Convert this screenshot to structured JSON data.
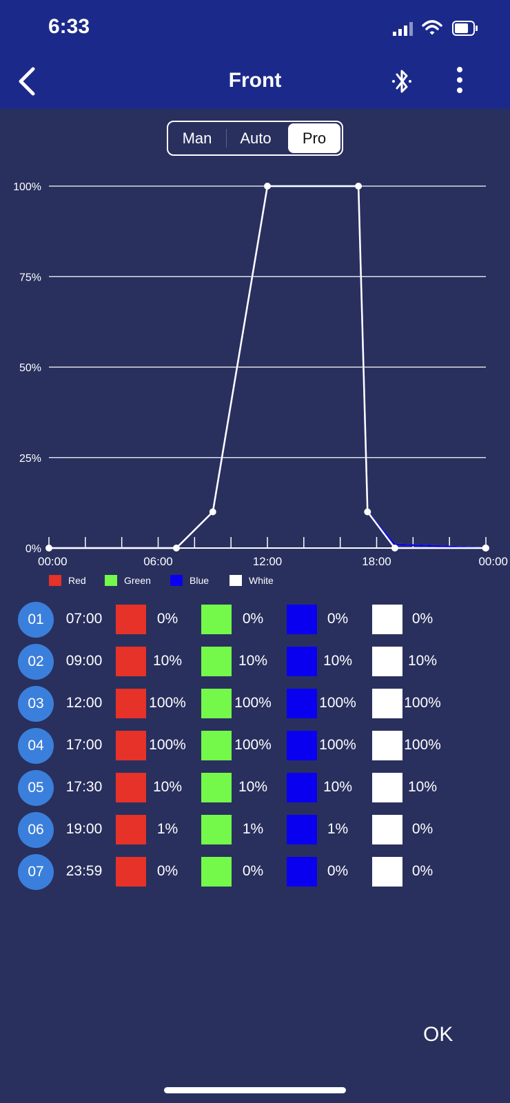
{
  "status": {
    "time": "6:33"
  },
  "header": {
    "title": "Front"
  },
  "segments": {
    "man": "Man",
    "auto": "Auto",
    "pro": "Pro",
    "selected": "Pro"
  },
  "chart_data": {
    "type": "line",
    "yticks": [
      "100%",
      "75%",
      "50%",
      "25%",
      "0%"
    ],
    "xticks": [
      "00:00",
      "06:00",
      "12:00",
      "18:00",
      "00:00"
    ],
    "ylim": [
      0,
      100
    ],
    "xlim_hours": [
      0,
      24
    ],
    "x": [
      "07:00",
      "09:00",
      "12:00",
      "17:00",
      "17:30",
      "19:00",
      "23:59"
    ],
    "series": [
      {
        "name": "Red",
        "color": "#e63228",
        "values": [
          0,
          10,
          100,
          100,
          10,
          1,
          0
        ]
      },
      {
        "name": "Green",
        "color": "#74f94a",
        "values": [
          0,
          10,
          100,
          100,
          10,
          1,
          0
        ]
      },
      {
        "name": "Blue",
        "color": "#0a00f0",
        "values": [
          0,
          10,
          100,
          100,
          10,
          1,
          0
        ]
      },
      {
        "name": "White",
        "color": "#ffffff",
        "values": [
          0,
          10,
          100,
          100,
          10,
          0,
          0
        ]
      }
    ],
    "grid": true
  },
  "schedule": [
    {
      "num": "01",
      "time": "07:00",
      "red": "0%",
      "green": "0%",
      "blue": "0%",
      "white": "0%"
    },
    {
      "num": "02",
      "time": "09:00",
      "red": "10%",
      "green": "10%",
      "blue": "10%",
      "white": "10%"
    },
    {
      "num": "03",
      "time": "12:00",
      "red": "100%",
      "green": "100%",
      "blue": "100%",
      "white": "100%"
    },
    {
      "num": "04",
      "time": "17:00",
      "red": "100%",
      "green": "100%",
      "blue": "100%",
      "white": "100%"
    },
    {
      "num": "05",
      "time": "17:30",
      "red": "10%",
      "green": "10%",
      "blue": "10%",
      "white": "10%"
    },
    {
      "num": "06",
      "time": "19:00",
      "red": "1%",
      "green": "1%",
      "blue": "1%",
      "white": "0%"
    },
    {
      "num": "07",
      "time": "23:59",
      "red": "0%",
      "green": "0%",
      "blue": "0%",
      "white": "0%"
    }
  ],
  "ok_label": "OK",
  "colors": {
    "header": "#1b2a8a",
    "background": "#29305e",
    "accent": "#3b7fdc"
  }
}
